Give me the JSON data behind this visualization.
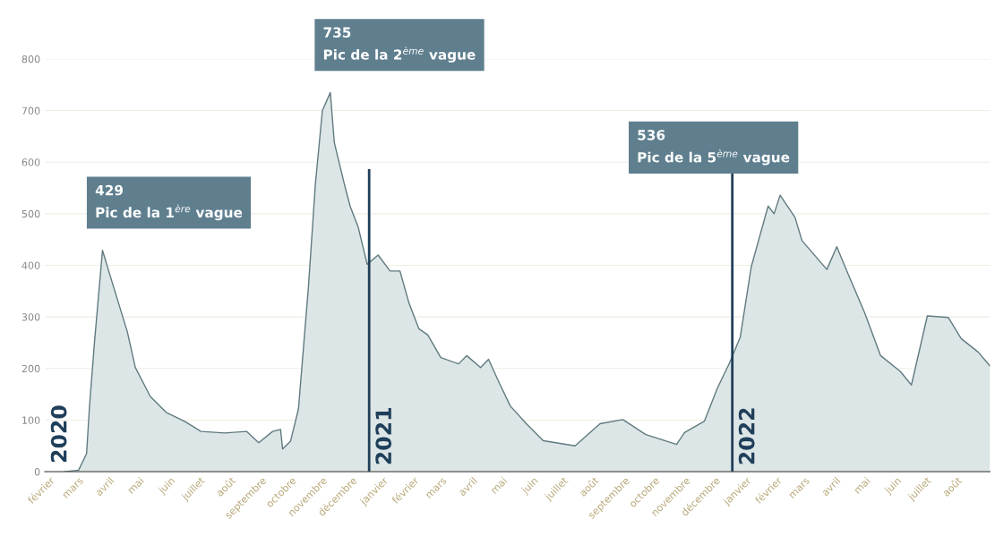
{
  "chart_data": {
    "type": "area",
    "x": [
      "2020-03-01",
      "2020-03-15",
      "2020-03-23",
      "2020-03-26",
      "2020-03-31",
      "2020-04-08",
      "2020-04-19",
      "2020-05-03",
      "2020-05-11",
      "2020-05-26",
      "2020-06-11",
      "2020-06-30",
      "2020-07-16",
      "2020-08-09",
      "2020-08-31",
      "2020-09-12",
      "2020-09-26",
      "2020-10-04",
      "2020-10-06",
      "2020-10-14",
      "2020-10-22",
      "2020-11-01",
      "2020-11-08",
      "2020-11-15",
      "2020-11-23",
      "2020-11-27",
      "2020-12-07",
      "2020-12-13",
      "2020-12-21",
      "2020-12-30",
      "2021-01-10",
      "2021-01-22",
      "2021-02-01",
      "2021-02-10",
      "2021-02-20",
      "2021-03-01",
      "2021-03-14",
      "2021-04-01",
      "2021-04-09",
      "2021-04-23",
      "2021-05-01",
      "2021-05-12",
      "2021-05-23",
      "2021-06-08",
      "2021-06-25",
      "2021-07-27",
      "2021-08-21",
      "2021-09-13",
      "2021-10-06",
      "2021-11-06",
      "2021-11-14",
      "2021-12-04",
      "2021-12-17",
      "2021-12-29",
      "2022-01-09",
      "2022-01-20",
      "2022-02-06",
      "2022-02-12",
      "2022-02-18",
      "2022-03-05",
      "2022-03-12",
      "2022-04-06",
      "2022-04-16",
      "2022-04-27",
      "2022-05-14",
      "2022-05-30",
      "2022-06-19",
      "2022-06-30",
      "2022-07-16",
      "2022-08-06",
      "2022-08-19",
      "2022-09-05",
      "2022-09-17"
    ],
    "series": [
      {
        "color": "#5f7a80",
        "values": [
          0,
          3,
          35,
          128,
          252,
          429,
          359,
          271,
          202,
          146,
          115,
          97,
          78,
          75,
          78,
          56,
          78,
          82,
          44,
          59,
          122,
          359,
          558,
          700,
          735,
          638,
          558,
          514,
          474,
          402,
          420,
          389,
          389,
          327,
          277,
          265,
          221,
          209,
          225,
          202,
          218,
          171,
          127,
          93,
          60,
          50,
          93,
          101,
          72,
          53,
          76,
          98,
          162,
          210,
          261,
          397,
          515,
          500,
          536,
          493,
          448,
          392,
          436,
          385,
          308,
          225,
          194,
          168,
          302,
          299,
          258,
          232,
          205
        ]
      }
    ],
    "xlim": [
      "2020-02-10",
      "2022-09-17"
    ],
    "xticks": [
      {
        "value": "2020-02-15",
        "label": "février"
      },
      {
        "value": "2020-03-15",
        "label": "mars"
      },
      {
        "value": "2020-04-15",
        "label": "avril"
      },
      {
        "value": "2020-05-15",
        "label": "mai"
      },
      {
        "value": "2020-06-15",
        "label": "juin"
      },
      {
        "value": "2020-07-15",
        "label": "juillet"
      },
      {
        "value": "2020-08-15",
        "label": "août"
      },
      {
        "value": "2020-09-15",
        "label": "septembre"
      },
      {
        "value": "2020-10-15",
        "label": "octobre"
      },
      {
        "value": "2020-11-15",
        "label": "novembre"
      },
      {
        "value": "2020-12-15",
        "label": "décembre"
      },
      {
        "value": "2021-01-15",
        "label": "janvier"
      },
      {
        "value": "2021-02-15",
        "label": "février"
      },
      {
        "value": "2021-03-15",
        "label": "mars"
      },
      {
        "value": "2021-04-15",
        "label": "avril"
      },
      {
        "value": "2021-05-15",
        "label": "mai"
      },
      {
        "value": "2021-06-15",
        "label": "juin"
      },
      {
        "value": "2021-07-15",
        "label": "juillet"
      },
      {
        "value": "2021-08-15",
        "label": "août"
      },
      {
        "value": "2021-09-15",
        "label": "septembre"
      },
      {
        "value": "2021-10-15",
        "label": "octobre"
      },
      {
        "value": "2021-11-15",
        "label": "novembre"
      },
      {
        "value": "2021-12-15",
        "label": "décembre"
      },
      {
        "value": "2022-01-15",
        "label": "janvier"
      },
      {
        "value": "2022-02-15",
        "label": "février"
      },
      {
        "value": "2022-03-15",
        "label": "mars"
      },
      {
        "value": "2022-04-15",
        "label": "avril"
      },
      {
        "value": "2022-05-15",
        "label": "mai"
      },
      {
        "value": "2022-06-15",
        "label": "juin"
      },
      {
        "value": "2022-07-15",
        "label": "juillet"
      },
      {
        "value": "2022-08-15",
        "label": "août"
      }
    ],
    "ylim": [
      0,
      800
    ],
    "yticks": [
      0,
      100,
      200,
      300,
      400,
      500,
      600,
      700,
      800
    ],
    "grid": "y",
    "ref_lines": [
      {
        "axis": "x",
        "value": "2021-01-01",
        "label": "2021",
        "color": "#1f3f5a"
      },
      {
        "axis": "x",
        "value": "2022-01-01",
        "label": "2022",
        "color": "#1f3f5a"
      }
    ],
    "annotations": [
      "2020",
      {
        "text": "429\nPic de la 1$^{ère}$ vague",
        "x": "2020-04-08",
        "y": 429
      },
      {
        "text": "735\nPic de la 2$^{ème}$ vague",
        "x": "2020-11-23",
        "y": 735
      },
      {
        "text": "536\nPic de la 5$^{ème}$ vague",
        "x": "2022-02-18",
        "y": 536
      }
    ]
  }
}
